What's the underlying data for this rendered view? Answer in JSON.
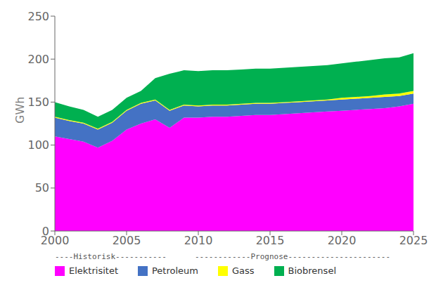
{
  "chart_data": {
    "type": "area",
    "stacked": true,
    "ylabel": "GWh",
    "x": [
      2000,
      2001,
      2002,
      2003,
      2004,
      2005,
      2006,
      2007,
      2008,
      2009,
      2010,
      2011,
      2012,
      2013,
      2014,
      2015,
      2016,
      2017,
      2018,
      2019,
      2020,
      2021,
      2022,
      2023,
      2024,
      2025
    ],
    "series": [
      {
        "name": "Elektrisitet",
        "color": "#FF00FF",
        "values": [
          110,
          107,
          104,
          97,
          105,
          118,
          125,
          130,
          120,
          132,
          132,
          133,
          133,
          134,
          135,
          135,
          136,
          137,
          138,
          139,
          140,
          141,
          142,
          143,
          145,
          148
        ]
      },
      {
        "name": "Petroleum",
        "color": "#4472C4",
        "values": [
          22,
          21,
          21,
          21,
          21,
          22,
          23,
          22,
          20,
          14,
          13,
          13,
          13,
          13,
          13,
          13,
          13,
          13,
          13,
          13,
          13,
          13,
          13,
          13,
          12,
          12
        ]
      },
      {
        "name": "Gass",
        "color": "#FFFF00",
        "values": [
          1,
          1,
          1,
          1,
          1,
          1,
          1,
          1,
          1,
          1,
          1,
          1,
          1,
          1,
          1,
          1,
          1,
          1,
          1,
          1,
          2,
          2,
          2,
          3,
          3,
          3
        ]
      },
      {
        "name": "Biobrensel",
        "color": "#00B050",
        "values": [
          17,
          16,
          15,
          14,
          14,
          14,
          14,
          25,
          42,
          40,
          40,
          40,
          40,
          40,
          40,
          40,
          40,
          40,
          40,
          40,
          40,
          41,
          42,
          42,
          42,
          44
        ]
      }
    ],
    "xlim": [
      2000,
      2025
    ],
    "xticks": [
      2000,
      2005,
      2010,
      2015,
      2020,
      2025
    ],
    "ylim": [
      0,
      250
    ],
    "yticks": [
      0,
      50,
      100,
      150,
      200,
      250
    ],
    "grid": false,
    "legend": "bottom",
    "annotations": [
      "----Historisk-----------",
      "------------Prognose----------------------"
    ]
  }
}
